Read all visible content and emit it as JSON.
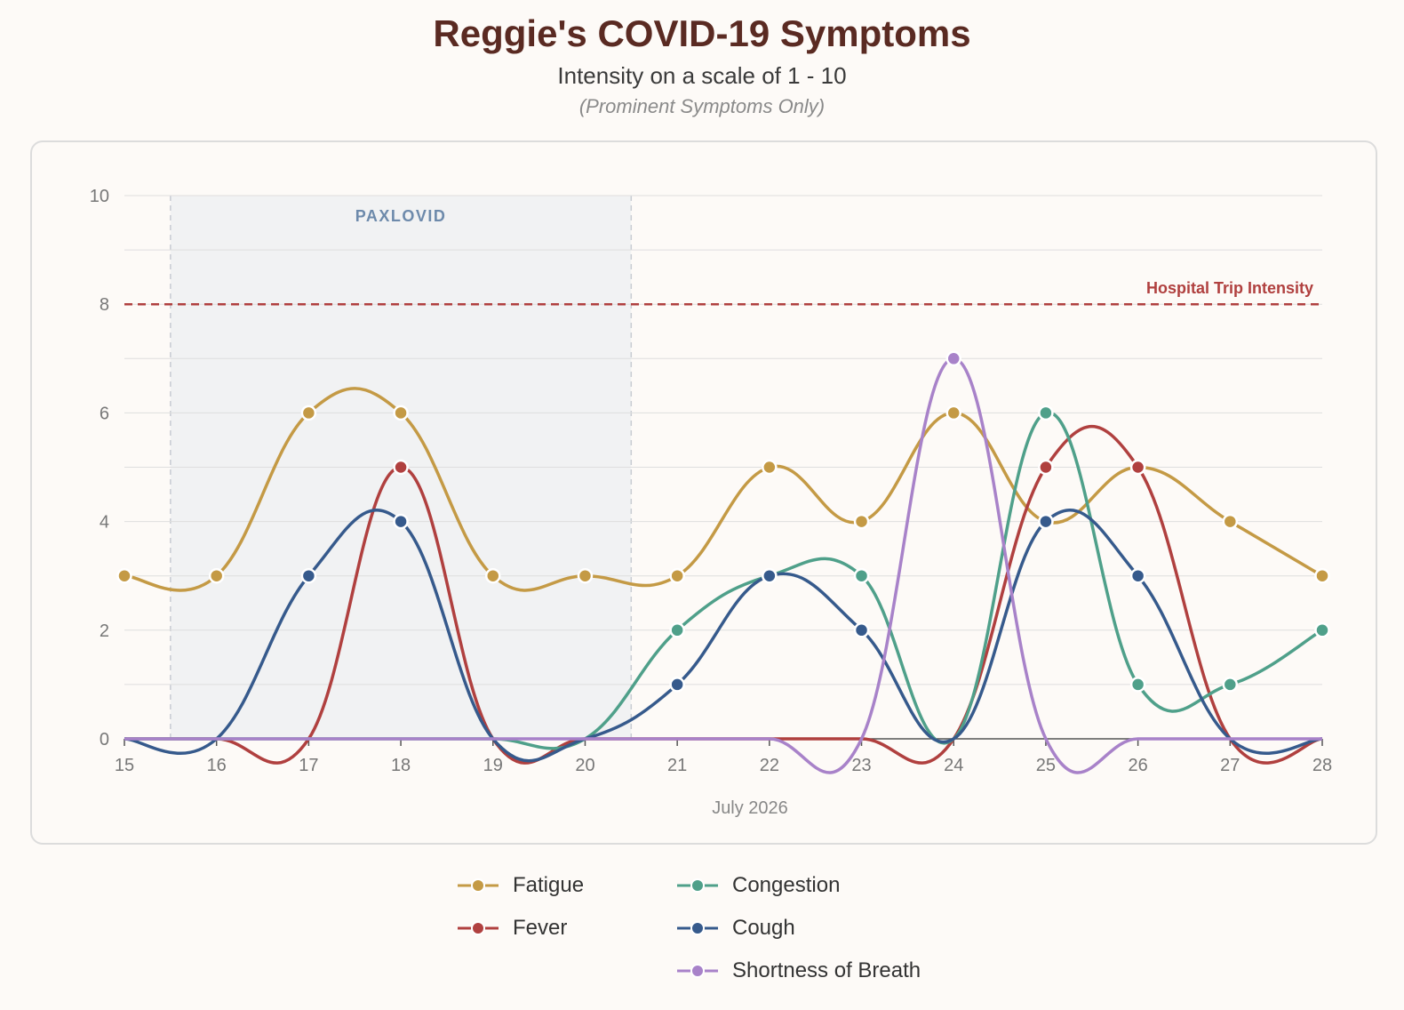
{
  "title": "Reggie's COVID-19 Symptoms",
  "subtitle": "Intensity on a scale of 1 - 10",
  "note": "(Prominent Symptoms Only)",
  "chart_data": {
    "type": "line",
    "xlabel": "July 2026",
    "ylabel": "",
    "x": [
      15,
      16,
      17,
      18,
      19,
      20,
      21,
      22,
      23,
      24,
      25,
      26,
      27,
      28
    ],
    "xlim": [
      15,
      28
    ],
    "ylim": [
      0,
      10
    ],
    "y_ticks": [
      0,
      2,
      4,
      6,
      8,
      10
    ],
    "grid": true,
    "legend_position": "bottom",
    "series": [
      {
        "name": "Fatigue",
        "color": "#c49a45",
        "values": [
          3,
          3,
          6,
          6,
          3,
          3,
          3,
          5,
          4,
          6,
          4,
          5,
          4,
          3
        ]
      },
      {
        "name": "Fever",
        "color": "#b0403f",
        "values": [
          0,
          0,
          0,
          5,
          0,
          0,
          0,
          0,
          0,
          0,
          5,
          5,
          0,
          0
        ]
      },
      {
        "name": "Congestion",
        "color": "#4fa08a",
        "values": [
          0,
          0,
          0,
          0,
          0,
          0,
          2,
          3,
          3,
          0,
          6,
          1,
          1,
          2
        ]
      },
      {
        "name": "Cough",
        "color": "#365a8c",
        "values": [
          0,
          0,
          3,
          4,
          0,
          0,
          1,
          3,
          2,
          0,
          4,
          3,
          0,
          0
        ]
      },
      {
        "name": "Shortness of Breath",
        "color": "#a882c9",
        "values": [
          0,
          0,
          0,
          0,
          0,
          0,
          0,
          0,
          0,
          7,
          0,
          0,
          0,
          0
        ]
      }
    ],
    "band": {
      "label": "PAXLOVID",
      "from": 15.5,
      "to": 20.5,
      "color": "#f1f2f3",
      "label_color": "#6d8aab"
    },
    "threshold": {
      "label": "Hospital Trip Intensity",
      "value": 8,
      "color": "#b0403f"
    }
  }
}
